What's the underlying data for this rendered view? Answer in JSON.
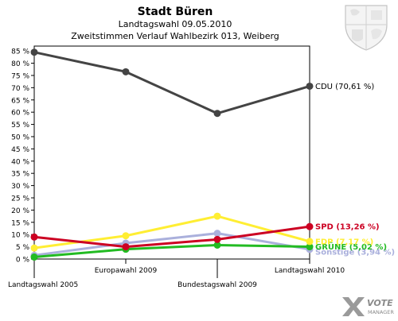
{
  "chart_data": {
    "type": "line",
    "title": "Stadt Büren",
    "subtitle_1": "Landtagswahl 09.05.2010",
    "subtitle_2": "Zweitstimmen Verlauf Wahlbezirk 013, Weiberg",
    "categories": [
      "Landtagswahl 2005",
      "Europawahl 2009",
      "Bundestagswahl 2009",
      "Landtagswahl 2010"
    ],
    "ylim": [
      0,
      87
    ],
    "y_ticks": [
      "0 %",
      "5 %",
      "10 %",
      "15 %",
      "20 %",
      "25 %",
      "30 %",
      "35 %",
      "40 %",
      "45 %",
      "50 %",
      "55 %",
      "60 %",
      "65 %",
      "70 %",
      "75 %",
      "80 %",
      "85 %"
    ],
    "y_tick_values": [
      0,
      5,
      10,
      15,
      20,
      25,
      30,
      35,
      40,
      45,
      50,
      55,
      60,
      65,
      70,
      75,
      80,
      85
    ],
    "grid": false,
    "series": [
      {
        "name": "Sonstige",
        "end_label": "Sonstige (3,94 %)",
        "color": "#aab0dc",
        "values": [
          1.5,
          6.5,
          10.5,
          3.94
        ]
      },
      {
        "name": "GRÜNE",
        "end_label": "GRÜNE (5,02 %)",
        "color": "#22bb22",
        "values": [
          0.8,
          4.0,
          5.7,
          5.02
        ]
      },
      {
        "name": "FDP",
        "end_label": "FDP (7,17 %)",
        "color": "#ffee33",
        "values": [
          4.5,
          9.5,
          17.5,
          7.17
        ]
      },
      {
        "name": "SPD",
        "end_label": "SPD (13,26 %)",
        "color": "#cc0022",
        "values": [
          9.0,
          5.0,
          8.0,
          13.26
        ]
      },
      {
        "name": "CDU",
        "end_label": "CDU (70,61 %)",
        "color": "#444444",
        "values": [
          84.5,
          76.5,
          59.5,
          70.61
        ]
      }
    ]
  },
  "branding": {
    "logo_text_1": "VOTE",
    "logo_text_2": "MANAGER",
    "accent": "#8a8a8a"
  }
}
